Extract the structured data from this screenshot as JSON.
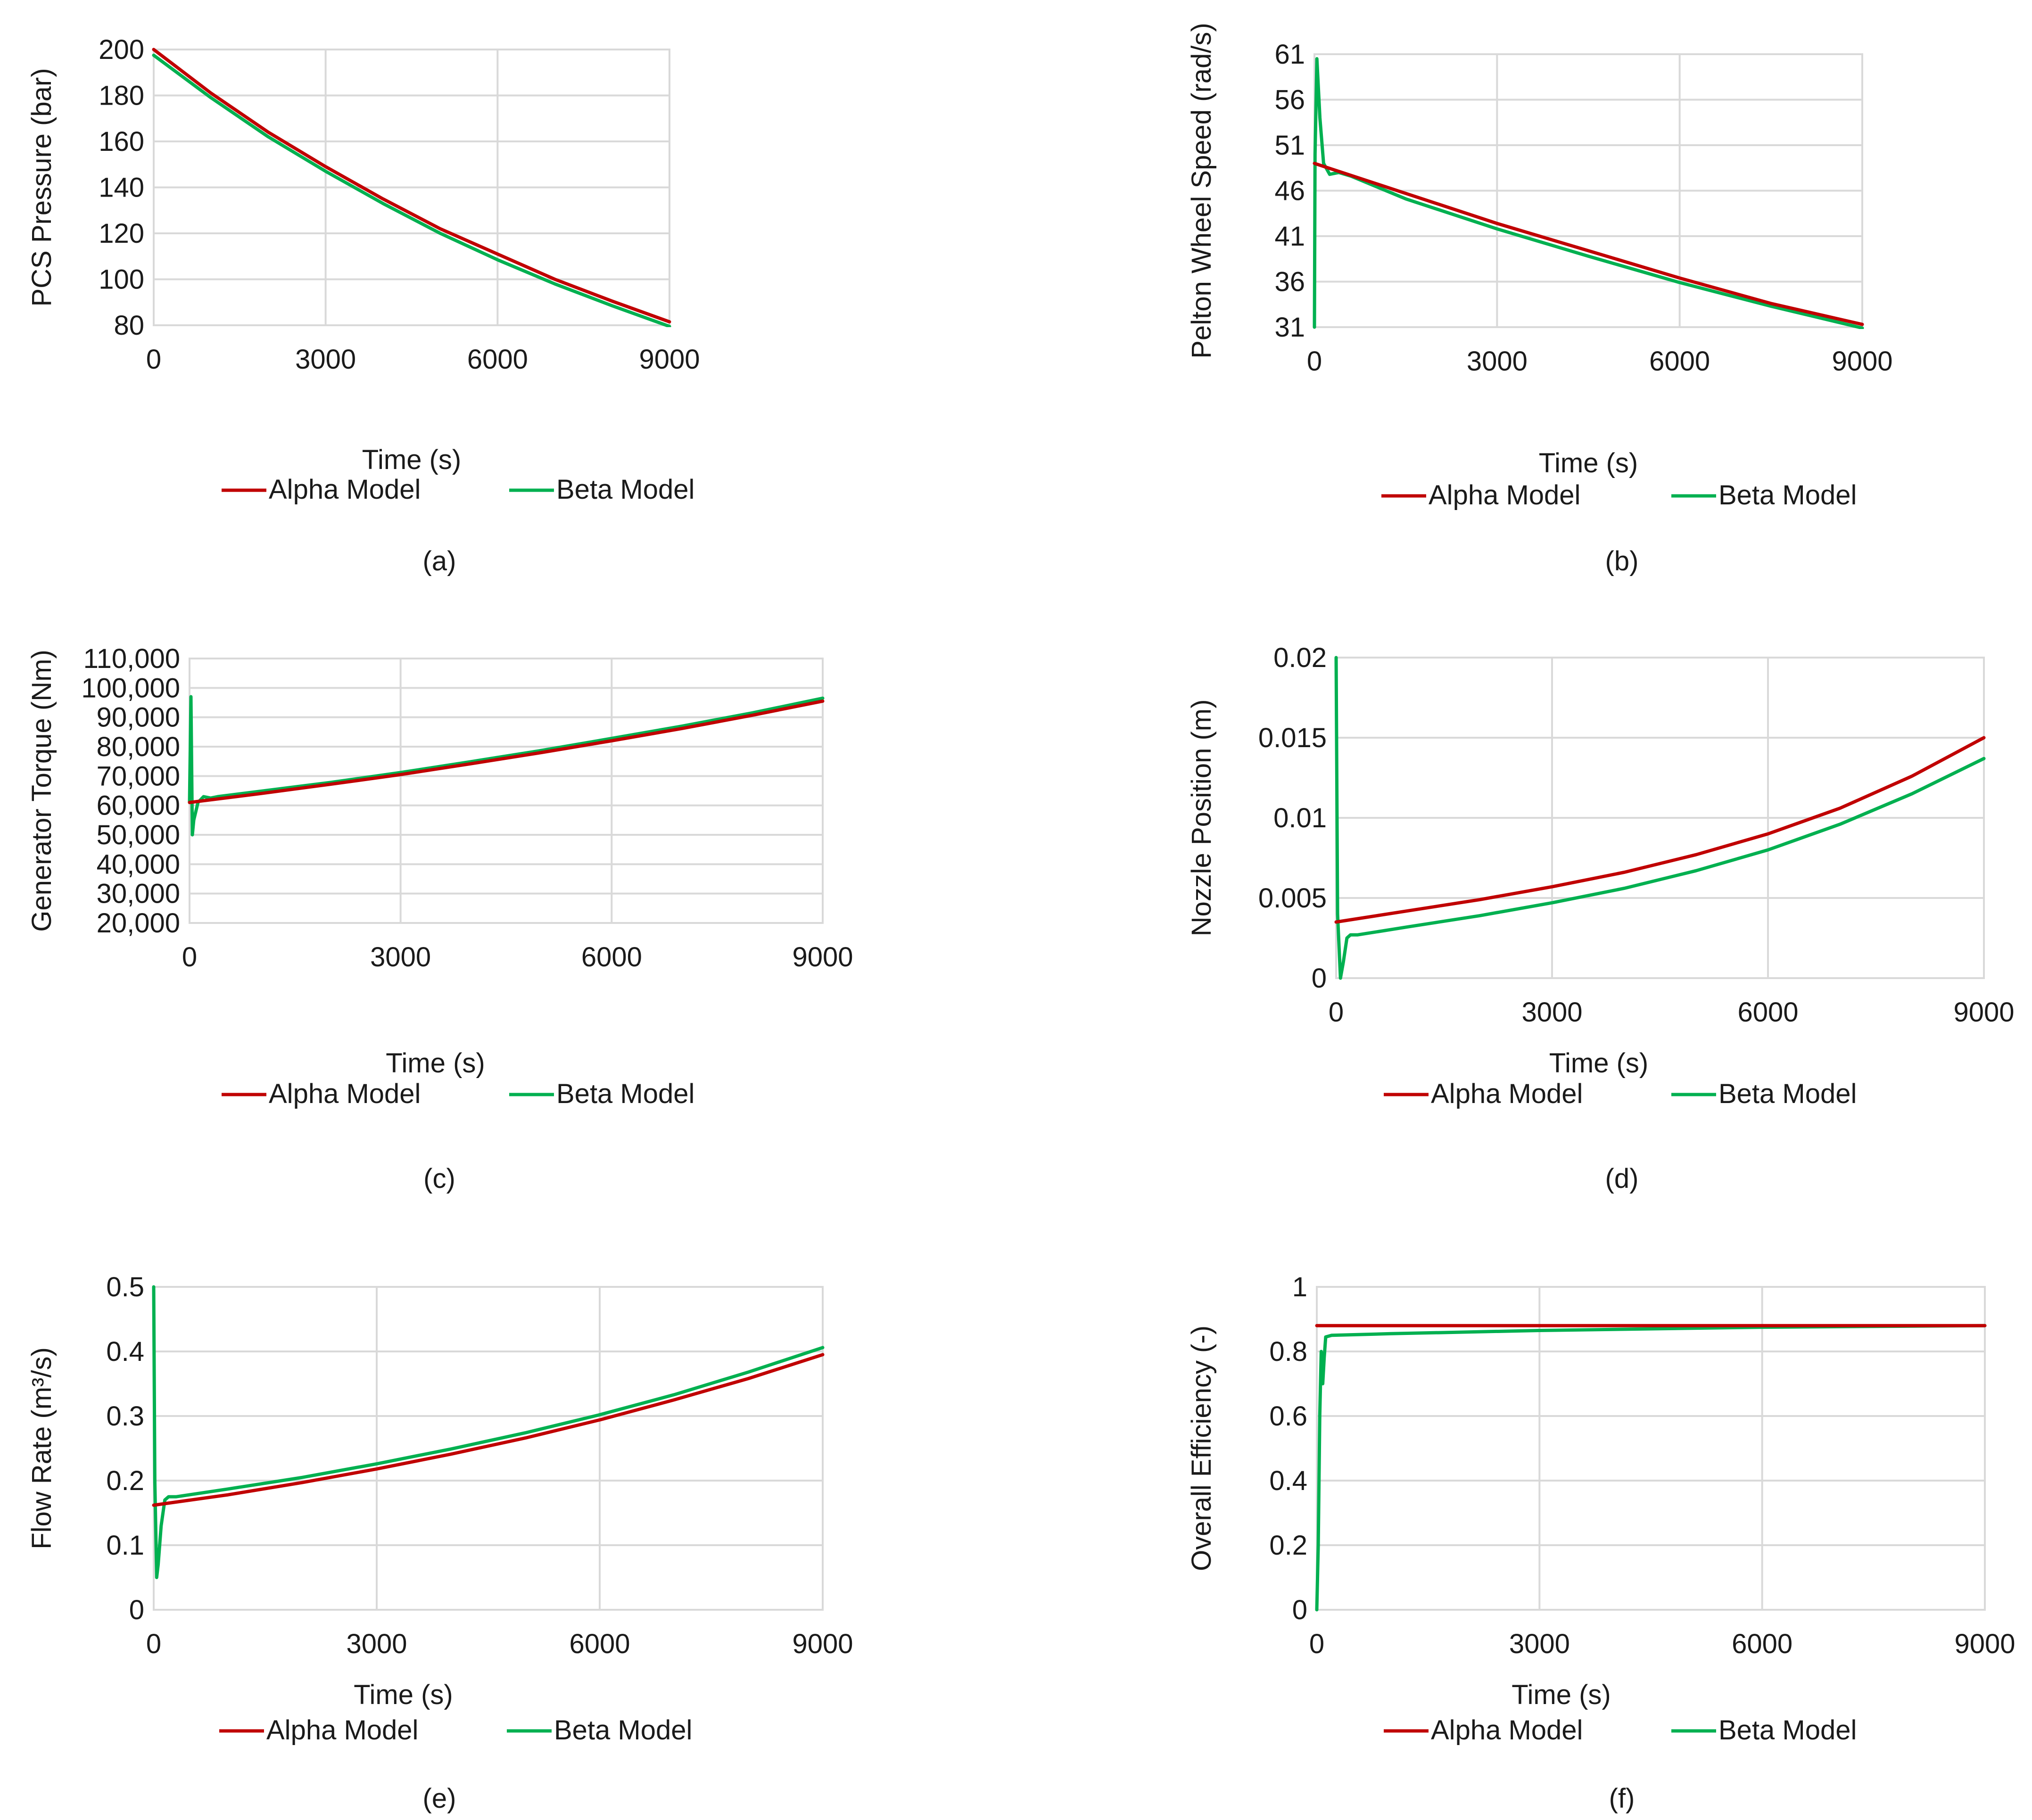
{
  "colors": {
    "alpha": "#c00000",
    "beta": "#00b050",
    "grid": "#d9d9d9",
    "text": "#1a1a1a"
  },
  "chart_data": [
    {
      "id": "a",
      "type": "line",
      "caption": "(a)",
      "title": "",
      "xlabel": "Time (s)",
      "ylabel": "PCS Pressure (bar)",
      "xlim": [
        0,
        9000
      ],
      "ylim": [
        80,
        200
      ],
      "xticks": [
        0,
        3000,
        6000,
        9000
      ],
      "xtick_labels": [
        "0",
        "3000",
        "6000",
        "9000"
      ],
      "yticks": [
        80,
        100,
        120,
        140,
        160,
        180,
        200
      ],
      "ytick_labels": [
        "80",
        "100",
        "120",
        "140",
        "160",
        "180",
        "200"
      ],
      "grid": true,
      "legend_position": "bottom",
      "series": [
        {
          "name": "Alpha Model",
          "color": "#c00000",
          "x": [
            0,
            1000,
            2000,
            3000,
            4000,
            5000,
            6000,
            7000,
            8000,
            9000
          ],
          "y": [
            200,
            181,
            164,
            149,
            135,
            122,
            111,
            100,
            90.5,
            81.5
          ]
        },
        {
          "name": "Beta Model",
          "color": "#00b050",
          "x": [
            0,
            1000,
            2000,
            3000,
            4000,
            5000,
            6000,
            7000,
            8000,
            9000
          ],
          "y": [
            197.5,
            179,
            162,
            147,
            133,
            120,
            108.5,
            98,
            88.5,
            79.5
          ]
        }
      ]
    },
    {
      "id": "b",
      "type": "line",
      "caption": "(b)",
      "title": "",
      "xlabel": "Time (s)",
      "ylabel": "Pelton Wheel Speed (rad/s)",
      "xlim": [
        0,
        9000
      ],
      "ylim": [
        31,
        61
      ],
      "xticks": [
        0,
        3000,
        6000,
        9000
      ],
      "xtick_labels": [
        "0",
        "3000",
        "6000",
        "9000"
      ],
      "yticks": [
        31,
        36,
        41,
        46,
        51,
        56,
        61
      ],
      "ytick_labels": [
        "31",
        "36",
        "41",
        "46",
        "51",
        "56",
        "61"
      ],
      "grid": true,
      "legend_position": "bottom",
      "series": [
        {
          "name": "Alpha Model",
          "color": "#c00000",
          "x": [
            0,
            1500,
            3000,
            4500,
            6000,
            7500,
            9000
          ],
          "y": [
            49,
            45.7,
            42.4,
            39.4,
            36.4,
            33.6,
            31.3
          ]
        },
        {
          "name": "Beta Model",
          "color": "#00b050",
          "x": [
            0,
            10,
            40,
            90,
            150,
            250,
            400,
            600,
            1500,
            3000,
            4500,
            6000,
            7500,
            9000
          ],
          "y": [
            31,
            50,
            60.5,
            54,
            49,
            47.8,
            48,
            47.6,
            45.1,
            41.8,
            38.8,
            35.9,
            33.3,
            30.9
          ]
        }
      ]
    },
    {
      "id": "c",
      "type": "line",
      "caption": "(c)",
      "title": "",
      "xlabel": "Time (s)",
      "ylabel": "Generator Torque (Nm)",
      "xlim": [
        0,
        9000
      ],
      "ylim": [
        20000,
        110000
      ],
      "xticks": [
        0,
        3000,
        6000,
        9000
      ],
      "xtick_labels": [
        "0",
        "3000",
        "6000",
        "9000"
      ],
      "yticks": [
        20000,
        30000,
        40000,
        50000,
        60000,
        70000,
        80000,
        90000,
        100000,
        110000
      ],
      "ytick_labels": [
        "20,000",
        "30,000",
        "40,000",
        "50,000",
        "60,000",
        "70,000",
        "80,000",
        "90,000",
        "100,000",
        "110,000"
      ],
      "grid": true,
      "legend_position": "bottom",
      "series": [
        {
          "name": "Alpha Model",
          "color": "#c00000",
          "x": [
            0,
            1000,
            2000,
            3000,
            4000,
            5000,
            6000,
            7000,
            8000,
            9000
          ],
          "y": [
            61000,
            64000,
            67200,
            70500,
            74200,
            78000,
            82000,
            86200,
            90700,
            95500
          ]
        },
        {
          "name": "Beta Model",
          "color": "#00b050",
          "x": [
            0,
            20,
            40,
            60,
            120,
            200,
            300,
            400,
            1000,
            2000,
            3000,
            4000,
            5000,
            6000,
            7000,
            8000,
            9000
          ],
          "y": [
            61000,
            97000,
            50000,
            55000,
            61000,
            63000,
            62500,
            63000,
            64800,
            67800,
            71200,
            74900,
            78700,
            82800,
            87000,
            91500,
            96500
          ]
        }
      ]
    },
    {
      "id": "d",
      "type": "line",
      "caption": "(d)",
      "title": "",
      "xlabel": "Time (s)",
      "ylabel": "Nozzle Position (m)",
      "xlim": [
        0,
        9000
      ],
      "ylim": [
        0,
        0.02
      ],
      "xticks": [
        0,
        3000,
        6000,
        9000
      ],
      "xtick_labels": [
        "0",
        "3000",
        "6000",
        "9000"
      ],
      "yticks": [
        0,
        0.005,
        0.01,
        0.015,
        0.02
      ],
      "ytick_labels": [
        "0",
        "0.005",
        "0.01",
        "0.015",
        "0.02"
      ],
      "grid": true,
      "legend_position": "bottom",
      "series": [
        {
          "name": "Alpha Model",
          "color": "#c00000",
          "x": [
            0,
            1000,
            2000,
            3000,
            4000,
            5000,
            6000,
            7000,
            8000,
            9000
          ],
          "y": [
            0.0035,
            0.0042,
            0.0049,
            0.0057,
            0.0066,
            0.0077,
            0.009,
            0.0106,
            0.0126,
            0.015
          ]
        },
        {
          "name": "Beta Model",
          "color": "#00b050",
          "x": [
            0,
            20,
            60,
            100,
            150,
            200,
            300,
            1000,
            2000,
            3000,
            4000,
            5000,
            6000,
            7000,
            8000,
            9000
          ],
          "y": [
            0.02,
            0.004,
            0.0,
            0.001,
            0.0025,
            0.0027,
            0.0027,
            0.0032,
            0.0039,
            0.0047,
            0.0056,
            0.0067,
            0.008,
            0.0096,
            0.0115,
            0.0137
          ]
        }
      ]
    },
    {
      "id": "e",
      "type": "line",
      "caption": "(e)",
      "title": "",
      "xlabel": "Time (s)",
      "ylabel": "Flow Rate (m³/s)",
      "xlim": [
        0,
        9000
      ],
      "ylim": [
        0,
        0.5
      ],
      "xticks": [
        0,
        3000,
        6000,
        9000
      ],
      "xtick_labels": [
        "0",
        "3000",
        "6000",
        "9000"
      ],
      "yticks": [
        0,
        0.1,
        0.2,
        0.3,
        0.4,
        0.5
      ],
      "ytick_labels": [
        "0",
        "0.1",
        "0.2",
        "0.3",
        "0.4",
        "0.5"
      ],
      "grid": true,
      "legend_position": "bottom",
      "series": [
        {
          "name": "Alpha Model",
          "color": "#c00000",
          "x": [
            0,
            1000,
            2000,
            3000,
            4000,
            5000,
            6000,
            7000,
            8000,
            9000
          ],
          "y": [
            0.162,
            0.178,
            0.197,
            0.218,
            0.241,
            0.266,
            0.294,
            0.325,
            0.358,
            0.395
          ]
        },
        {
          "name": "Beta Model",
          "color": "#00b050",
          "x": [
            0,
            15,
            40,
            60,
            100,
            150,
            200,
            300,
            1000,
            2000,
            3000,
            4000,
            5000,
            6000,
            7000,
            8000,
            9000
          ],
          "y": [
            0.5,
            0.2,
            0.05,
            0.07,
            0.13,
            0.17,
            0.175,
            0.175,
            0.187,
            0.205,
            0.226,
            0.249,
            0.274,
            0.302,
            0.333,
            0.368,
            0.406
          ]
        }
      ]
    },
    {
      "id": "f",
      "type": "line",
      "caption": "(f)",
      "title": "",
      "xlabel": "Time (s)",
      "ylabel": "Overall Efficiency (-)",
      "xlim": [
        0,
        9000
      ],
      "ylim": [
        0,
        1
      ],
      "xticks": [
        0,
        3000,
        6000,
        9000
      ],
      "xtick_labels": [
        "0",
        "3000",
        "6000",
        "9000"
      ],
      "yticks": [
        0,
        0.2,
        0.4,
        0.6,
        0.8,
        1
      ],
      "ytick_labels": [
        "0",
        "0.2",
        "0.4",
        "0.6",
        "0.8",
        "1"
      ],
      "grid": true,
      "legend_position": "bottom",
      "series": [
        {
          "name": "Alpha Model",
          "color": "#c00000",
          "x": [
            0,
            9000
          ],
          "y": [
            0.88,
            0.88
          ]
        },
        {
          "name": "Beta Model",
          "color": "#00b050",
          "x": [
            0,
            20,
            40,
            60,
            80,
            100,
            120,
            200,
            1000,
            3000,
            6000,
            9000
          ],
          "y": [
            0.0,
            0.2,
            0.6,
            0.8,
            0.7,
            0.78,
            0.845,
            0.85,
            0.855,
            0.865,
            0.875,
            0.88
          ]
        }
      ]
    }
  ]
}
